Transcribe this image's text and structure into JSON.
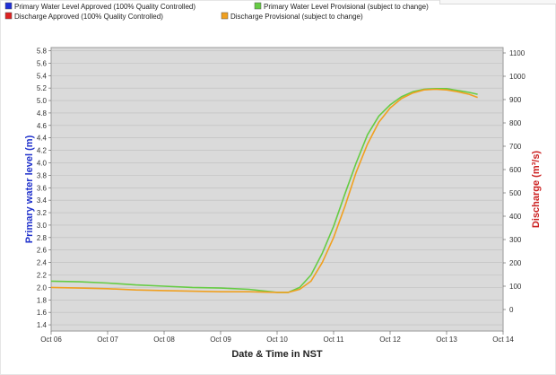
{
  "chart_data": {
    "type": "line",
    "legend": [
      {
        "label": "Primary Water Level Approved (100% Quality Controlled)",
        "color": "#1f2fd6"
      },
      {
        "label": "Primary Water Level Provisional (subject to change)",
        "color": "#66cc44"
      },
      {
        "label": "Discharge Approved (100% Quality Controlled)",
        "color": "#dd2222"
      },
      {
        "label": "Discharge Provisional (subject to change)",
        "color": "#f0a020"
      }
    ],
    "xlabel": "Date & Time in NST",
    "ylabel_left": "Primary water level (m)",
    "ylabel_right": "Discharge (m³/s)",
    "x_ticks": [
      "Oct 06",
      "Oct 07",
      "Oct 08",
      "Oct 09",
      "Oct 10",
      "Oct 11",
      "Oct 12",
      "Oct 13",
      "Oct 14"
    ],
    "xlim": [
      0,
      8
    ],
    "ylim_left": [
      1.3,
      5.85
    ],
    "y_ticks_left": [
      "1.4",
      "1.6",
      "1.8",
      "2.0",
      "2.2",
      "2.4",
      "2.6",
      "2.8",
      "3.0",
      "3.2",
      "3.4",
      "3.6",
      "3.8",
      "4.0",
      "4.2",
      "4.4",
      "4.6",
      "4.8",
      "5.0",
      "5.2",
      "5.4",
      "5.6",
      "5.8"
    ],
    "y_ticks_right": [
      "0",
      "100",
      "200",
      "300",
      "400",
      "500",
      "600",
      "700",
      "800",
      "900",
      "1000",
      "1100"
    ],
    "series": [
      {
        "name": "Primary Water Level Provisional (subject to change)",
        "color": "#66cc44",
        "x": [
          0,
          0.5,
          1,
          1.5,
          2,
          2.5,
          3,
          3.5,
          4,
          4.2,
          4.4,
          4.6,
          4.8,
          5,
          5.2,
          5.4,
          5.6,
          5.8,
          6,
          6.2,
          6.4,
          6.6,
          6.8,
          7,
          7.2,
          7.4,
          7.55
        ],
        "y": [
          2.1,
          2.09,
          2.07,
          2.04,
          2.02,
          2.0,
          1.99,
          1.97,
          1.92,
          1.92,
          2.0,
          2.2,
          2.55,
          2.98,
          3.5,
          4.0,
          4.45,
          4.75,
          4.93,
          5.06,
          5.14,
          5.18,
          5.19,
          5.19,
          5.16,
          5.13,
          5.1
        ]
      },
      {
        "name": "Discharge Provisional (subject to change)",
        "color": "#f0a020",
        "x": [
          0,
          0.5,
          1,
          1.5,
          2,
          2.5,
          3,
          3.5,
          4,
          4.2,
          4.4,
          4.6,
          4.8,
          5,
          5.2,
          5.4,
          5.6,
          5.8,
          6,
          6.2,
          6.4,
          6.6,
          6.8,
          7,
          7.2,
          7.4,
          7.55
        ],
        "y": [
          2.0,
          1.99,
          1.98,
          1.96,
          1.95,
          1.94,
          1.93,
          1.93,
          1.92,
          1.92,
          1.97,
          2.1,
          2.4,
          2.8,
          3.3,
          3.85,
          4.3,
          4.65,
          4.88,
          5.03,
          5.12,
          5.17,
          5.18,
          5.17,
          5.14,
          5.1,
          5.05
        ]
      }
    ]
  }
}
